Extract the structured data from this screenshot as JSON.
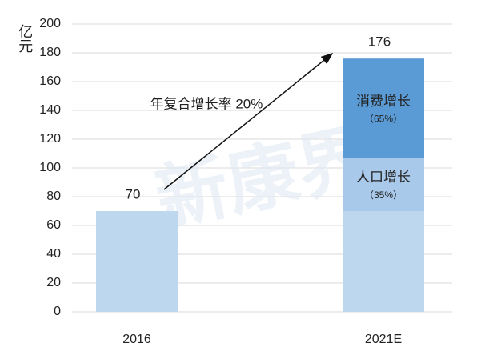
{
  "chart_data": {
    "type": "stacked_bar",
    "y_label": "亿元",
    "categories": [
      "2016",
      "2021E"
    ],
    "series": [
      {
        "color": "#bdd7ee",
        "values": [
          70,
          70
        ]
      },
      {
        "name": "人口增长",
        "share_label": "（35%）",
        "color": "#a9c9ea",
        "values": [
          null,
          37
        ]
      },
      {
        "name": "消费增长",
        "share_label": "（65%）",
        "color": "#5b9bd5",
        "values": [
          null,
          69
        ]
      }
    ],
    "totals": [
      70,
      176
    ],
    "annotation": "年复合增长率 20%",
    "watermark": "新康界",
    "ylim": [
      0,
      200
    ],
    "yticks": [
      0,
      20,
      40,
      60,
      80,
      100,
      120,
      140,
      160,
      180,
      200
    ],
    "grid": true
  }
}
